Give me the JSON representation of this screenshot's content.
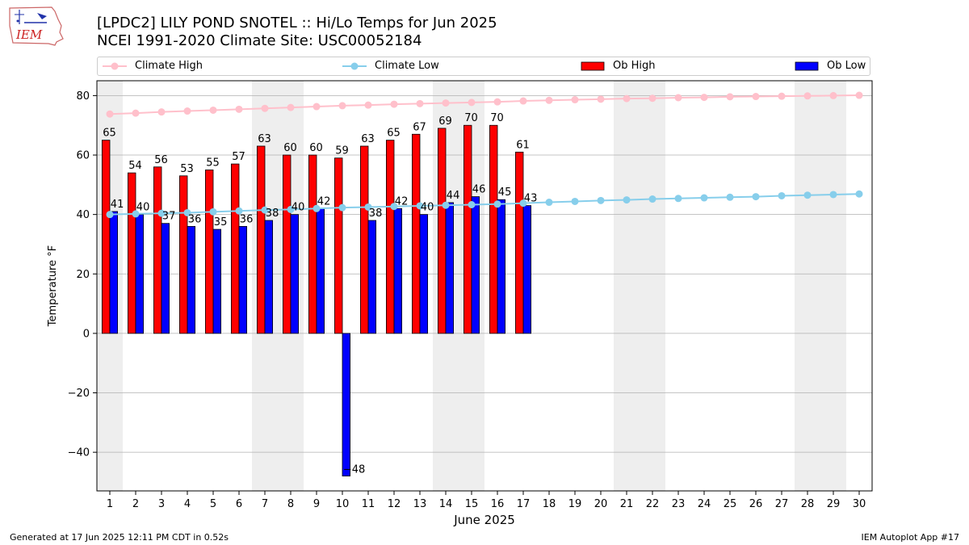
{
  "header": {
    "title_line1": "[LPDC2] LILY POND SNOTEL :: Hi/Lo Temps for Jun 2025",
    "title_line2": "NCEI 1991-2020 Climate Site: USC00052184",
    "logo_text": "IEM"
  },
  "footer": {
    "generated": "Generated at 17 Jun 2025 12:11 PM CDT in 0.52s",
    "app": "IEM Autoplot App #17"
  },
  "legend": [
    {
      "label": "Climate High",
      "kind": "line",
      "color": "#ffc0cb"
    },
    {
      "label": "Climate Low",
      "kind": "line",
      "color": "#87ceeb"
    },
    {
      "label": "Ob High",
      "kind": "bar",
      "color": "#ff0000"
    },
    {
      "label": "Ob Low",
      "kind": "bar",
      "color": "#0000ff"
    }
  ],
  "chart_data": {
    "type": "bar",
    "xlabel": "June 2025",
    "ylabel": "Temperature °F",
    "xlim": [
      0.5,
      30.5
    ],
    "ylim": [
      -53,
      85
    ],
    "yticks": [
      -40,
      -20,
      0,
      20,
      40,
      60,
      80
    ],
    "x": [
      1,
      2,
      3,
      4,
      5,
      6,
      7,
      8,
      9,
      10,
      11,
      12,
      13,
      14,
      15,
      16,
      17,
      18,
      19,
      20,
      21,
      22,
      23,
      24,
      25,
      26,
      27,
      28,
      29,
      30
    ],
    "weekend_shading": [
      [
        0.5,
        1.5
      ],
      [
        6.5,
        8.5
      ],
      [
        13.5,
        15.5
      ],
      [
        20.5,
        22.5
      ],
      [
        27.5,
        29.5
      ]
    ],
    "ob_high": [
      65,
      54,
      56,
      53,
      55,
      57,
      63,
      60,
      60,
      59,
      63,
      65,
      67,
      69,
      70,
      70,
      61
    ],
    "ob_low": [
      41,
      40,
      37,
      36,
      35,
      36,
      38,
      40,
      42,
      -48,
      38,
      42,
      40,
      44,
      46,
      45,
      43
    ],
    "climate_high": [
      73.8,
      74.1,
      74.5,
      74.8,
      75.1,
      75.4,
      75.7,
      76.0,
      76.3,
      76.6,
      76.8,
      77.1,
      77.3,
      77.5,
      77.7,
      77.9,
      78.2,
      78.4,
      78.6,
      78.8,
      79.0,
      79.1,
      79.3,
      79.4,
      79.6,
      79.7,
      79.8,
      79.9,
      80.0,
      80.1
    ],
    "climate_low": [
      40.0,
      40.2,
      40.4,
      40.6,
      40.9,
      41.2,
      41.5,
      41.7,
      42.0,
      42.3,
      42.5,
      42.7,
      42.9,
      43.1,
      43.3,
      43.5,
      43.8,
      44.1,
      44.4,
      44.7,
      44.9,
      45.2,
      45.4,
      45.6,
      45.8,
      46.0,
      46.3,
      46.5,
      46.7,
      46.9
    ],
    "colors": {
      "ob_high": "#ff0000",
      "ob_low": "#0000ff",
      "climate_high": "#ffc0cb",
      "climate_low": "#87ceeb",
      "shade": "#eeeeee",
      "grid": "#b0b0b0"
    },
    "grid": "y",
    "legend_position": "top"
  }
}
